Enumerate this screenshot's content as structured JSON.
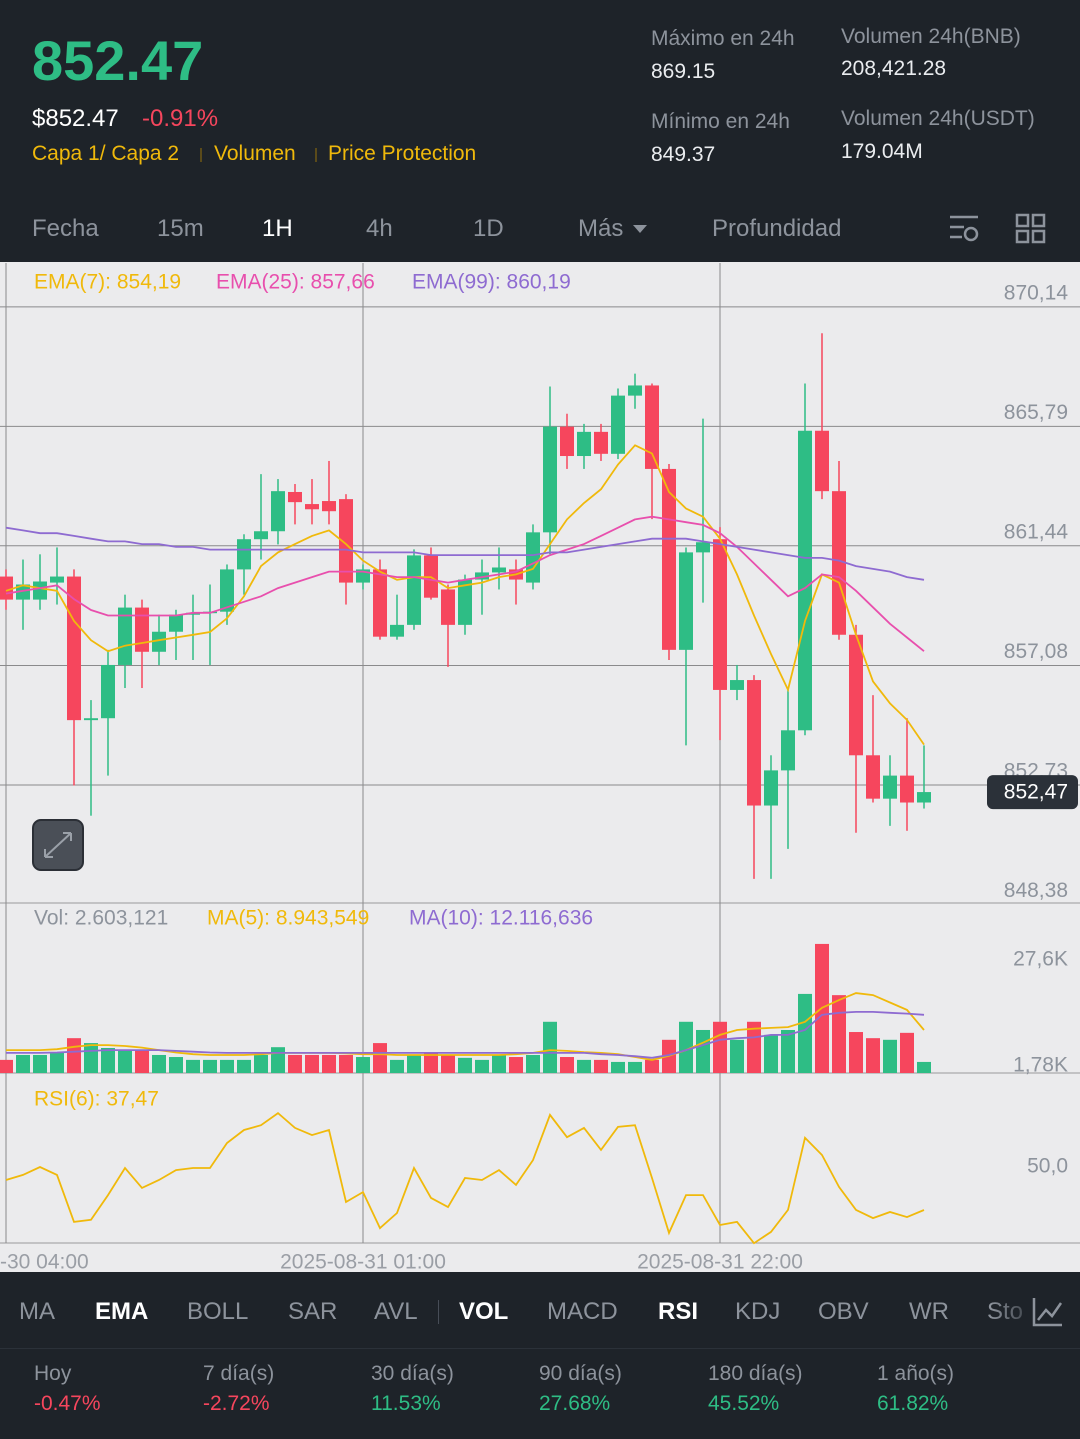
{
  "header": {
    "price": "852.47",
    "usd_price": "$852.47",
    "change": "-0.91%",
    "tags": [
      "Capa 1/ Capa 2",
      "Volumen",
      "Price Protection"
    ]
  },
  "stats": [
    {
      "label": "Máximo en 24h",
      "value": "869.15"
    },
    {
      "label": "Mínimo en 24h",
      "value": "849.37"
    },
    {
      "label": "Volumen 24h(BNB)",
      "value": "208,421.28"
    },
    {
      "label": "Volumen 24h(USDT)",
      "value": "179.04M"
    }
  ],
  "timeframes": [
    "Fecha",
    "15m",
    "1H",
    "4h",
    "1D",
    "Más",
    "Profundidad"
  ],
  "chart": {
    "type": "candlestick",
    "up_color": "#2ebd85",
    "down_color": "#f6465d",
    "ylim": [
      848.43,
      871.74
    ],
    "yticks": [
      {
        "value": 870.14,
        "label": "870,14"
      },
      {
        "value": 865.79,
        "label": "865,79"
      },
      {
        "value": 861.44,
        "label": "861,44"
      },
      {
        "value": 857.08,
        "label": "857,08"
      },
      {
        "value": 852.73,
        "label": "852,73"
      },
      {
        "value": 848.38,
        "label": "848,38"
      }
    ],
    "last_price": {
      "value": 852.47,
      "label": "852,47"
    },
    "categories": [
      "-30 04:00",
      null,
      null,
      null,
      null,
      null,
      null,
      null,
      null,
      null,
      null,
      null,
      null,
      null,
      null,
      null,
      null,
      null,
      null,
      null,
      null,
      "2025-08-31 01:00",
      null,
      null,
      null,
      null,
      null,
      null,
      null,
      null,
      null,
      null,
      null,
      null,
      null,
      null,
      null,
      null,
      null,
      null,
      null,
      null,
      "2025-08-31 22:00",
      null,
      null,
      null,
      null,
      null,
      null,
      null,
      null,
      null,
      null,
      null,
      null
    ],
    "candles": [
      {
        "open": 860.32,
        "high": 860.58,
        "low": 859.11,
        "close": 859.48
      },
      {
        "open": 859.48,
        "high": 860.94,
        "low": 858.38,
        "close": 860.03
      },
      {
        "open": 859.48,
        "high": 861.13,
        "low": 859.11,
        "close": 860.14
      },
      {
        "open": 860.1,
        "high": 861.38,
        "low": 859.3,
        "close": 860.32
      },
      {
        "open": 860.32,
        "high": 860.58,
        "low": 852.71,
        "close": 855.09
      },
      {
        "open": 855.09,
        "high": 855.82,
        "low": 851.61,
        "close": 855.16
      },
      {
        "open": 855.16,
        "high": 857.65,
        "low": 853.07,
        "close": 857.1
      },
      {
        "open": 857.1,
        "high": 859.66,
        "low": 856.26,
        "close": 859.19
      },
      {
        "open": 859.19,
        "high": 859.48,
        "low": 856.26,
        "close": 857.58
      },
      {
        "open": 857.58,
        "high": 858.93,
        "low": 857.1,
        "close": 858.31
      },
      {
        "open": 858.31,
        "high": 859.11,
        "low": 857.28,
        "close": 858.93
      },
      {
        "open": 858.93,
        "high": 859.66,
        "low": 857.28,
        "close": 859.0
      },
      {
        "open": 859.0,
        "high": 860.03,
        "low": 857.1,
        "close": 859.04
      },
      {
        "open": 859.04,
        "high": 860.76,
        "low": 858.56,
        "close": 860.58
      },
      {
        "open": 860.58,
        "high": 861.86,
        "low": 859.66,
        "close": 861.68
      },
      {
        "open": 861.68,
        "high": 864.05,
        "low": 860.94,
        "close": 861.97
      },
      {
        "open": 861.97,
        "high": 863.87,
        "low": 861.49,
        "close": 863.43
      },
      {
        "open": 863.4,
        "high": 863.69,
        "low": 862.22,
        "close": 863.03
      },
      {
        "open": 862.96,
        "high": 863.87,
        "low": 862.22,
        "close": 862.77
      },
      {
        "open": 863.07,
        "high": 864.53,
        "low": 862.22,
        "close": 862.7
      },
      {
        "open": 863.14,
        "high": 863.32,
        "low": 859.3,
        "close": 860.1
      },
      {
        "open": 860.1,
        "high": 860.76,
        "low": 859.85,
        "close": 860.58
      },
      {
        "open": 860.58,
        "high": 860.94,
        "low": 858.02,
        "close": 858.13
      },
      {
        "open": 858.13,
        "high": 859.66,
        "low": 858.02,
        "close": 858.56
      },
      {
        "open": 858.56,
        "high": 861.31,
        "low": 858.38,
        "close": 861.09
      },
      {
        "open": 861.09,
        "high": 861.38,
        "low": 859.48,
        "close": 859.55
      },
      {
        "open": 859.85,
        "high": 860.03,
        "low": 857.03,
        "close": 858.56
      },
      {
        "open": 858.56,
        "high": 860.39,
        "low": 858.2,
        "close": 860.21
      },
      {
        "open": 860.21,
        "high": 860.94,
        "low": 858.93,
        "close": 860.47
      },
      {
        "open": 860.47,
        "high": 861.38,
        "low": 859.85,
        "close": 860.65
      },
      {
        "open": 860.58,
        "high": 860.94,
        "low": 859.3,
        "close": 860.21
      },
      {
        "open": 860.1,
        "high": 862.22,
        "low": 859.85,
        "close": 861.93
      },
      {
        "open": 861.93,
        "high": 867.24,
        "low": 861.13,
        "close": 865.78
      },
      {
        "open": 865.78,
        "high": 866.25,
        "low": 864.24,
        "close": 864.71
      },
      {
        "open": 864.71,
        "high": 865.88,
        "low": 864.24,
        "close": 865.59
      },
      {
        "open": 865.59,
        "high": 865.88,
        "low": 864.53,
        "close": 864.79
      },
      {
        "open": 864.79,
        "high": 867.17,
        "low": 864.6,
        "close": 866.91
      },
      {
        "open": 866.91,
        "high": 867.71,
        "low": 866.43,
        "close": 867.28
      },
      {
        "open": 867.28,
        "high": 867.35,
        "low": 862.41,
        "close": 864.24
      },
      {
        "open": 864.24,
        "high": 864.42,
        "low": 857.28,
        "close": 857.65
      },
      {
        "open": 857.65,
        "high": 861.38,
        "low": 854.17,
        "close": 861.2
      },
      {
        "open": 861.2,
        "high": 866.07,
        "low": 859.37,
        "close": 861.57
      },
      {
        "open": 861.68,
        "high": 862.12,
        "low": 854.36,
        "close": 856.19
      },
      {
        "open": 856.19,
        "high": 857.1,
        "low": 855.82,
        "close": 856.55
      },
      {
        "open": 856.55,
        "high": 856.73,
        "low": 849.31,
        "close": 851.98
      },
      {
        "open": 851.98,
        "high": 853.81,
        "low": 849.31,
        "close": 853.26
      },
      {
        "open": 853.26,
        "high": 856.19,
        "low": 850.4,
        "close": 854.72
      },
      {
        "open": 854.72,
        "high": 867.35,
        "low": 854.54,
        "close": 865.63
      },
      {
        "open": 865.63,
        "high": 869.18,
        "low": 863.14,
        "close": 863.43
      },
      {
        "open": 863.43,
        "high": 864.53,
        "low": 858.02,
        "close": 858.2
      },
      {
        "open": 858.2,
        "high": 858.56,
        "low": 850.99,
        "close": 853.81
      },
      {
        "open": 853.81,
        "high": 856.0,
        "low": 852.09,
        "close": 852.23
      },
      {
        "open": 852.23,
        "high": 853.81,
        "low": 851.24,
        "close": 853.07
      },
      {
        "open": 853.07,
        "high": 855.16,
        "low": 851.06,
        "close": 852.09
      },
      {
        "open": 852.09,
        "high": 854.17,
        "low": 851.87,
        "close": 852.47
      }
    ],
    "series": [
      {
        "name": "EMA(7): 854,19",
        "color": "#f0b90b",
        "values": [
          859.8,
          860.0,
          859.9,
          859.8,
          858.7,
          858.0,
          857.6,
          857.8,
          857.9,
          858.0,
          858.1,
          858.2,
          858.3,
          858.8,
          859.6,
          860.7,
          861.2,
          861.5,
          861.8,
          862.0,
          861.5,
          860.9,
          860.5,
          860.2,
          860.3,
          860.3,
          859.9,
          860.0,
          860.1,
          860.3,
          860.4,
          860.6,
          861.5,
          862.4,
          863.0,
          863.5,
          864.4,
          865.1,
          864.8,
          863.4,
          862.8,
          862.5,
          861.7,
          860.4,
          858.9,
          857.5,
          856.2,
          858.7,
          860.4,
          860.1,
          858.2,
          856.5,
          855.7,
          855.1,
          854.2
        ]
      },
      {
        "name": "EMA(25): 857,66",
        "color": "#e84fad",
        "values": [
          859.7,
          859.8,
          859.9,
          860.0,
          859.5,
          859.1,
          858.9,
          858.9,
          858.9,
          858.9,
          858.9,
          859.0,
          859.0,
          859.2,
          859.4,
          859.6,
          859.9,
          860.1,
          860.3,
          860.5,
          860.5,
          860.5,
          860.4,
          860.3,
          860.3,
          860.2,
          860.1,
          860.2,
          860.3,
          860.4,
          860.5,
          860.8,
          861.1,
          861.3,
          861.5,
          861.8,
          862.1,
          862.4,
          862.5,
          862.4,
          862.3,
          862.2,
          861.9,
          861.4,
          860.8,
          860.2,
          859.6,
          859.9,
          860.4,
          860.3,
          859.8,
          859.2,
          858.6,
          858.1,
          857.6
        ]
      },
      {
        "name": "EMA(99): 860,19",
        "color": "#8e6bd1",
        "values": [
          862.1,
          862.0,
          861.9,
          861.9,
          861.8,
          861.7,
          861.6,
          861.6,
          861.5,
          861.5,
          861.4,
          861.4,
          861.3,
          861.3,
          861.3,
          861.3,
          861.3,
          861.3,
          861.3,
          861.3,
          861.3,
          861.2,
          861.2,
          861.2,
          861.2,
          861.1,
          861.1,
          861.1,
          861.1,
          861.1,
          861.1,
          861.1,
          861.2,
          861.2,
          861.3,
          861.4,
          861.5,
          861.6,
          861.7,
          861.7,
          861.7,
          861.6,
          861.5,
          861.4,
          861.3,
          861.2,
          861.1,
          861.0,
          861.0,
          860.9,
          860.7,
          860.6,
          860.5,
          860.3,
          860.2
        ]
      }
    ],
    "volume": {
      "title": "Vol: 2.603,121",
      "ylim": [
        0,
        41
      ],
      "yticks": [
        {
          "value": 27.6,
          "label": "27,6K"
        },
        {
          "value": 1.78,
          "label": "1,78K"
        }
      ],
      "values": [
        3.2,
        4.4,
        4.4,
        4.9,
        8.5,
        7.3,
        6.1,
        5.6,
        5.6,
        4.4,
        3.9,
        3.2,
        3.2,
        3.2,
        3.2,
        4.4,
        6.3,
        4.4,
        4.4,
        4.4,
        4.4,
        3.9,
        7.3,
        3.2,
        4.4,
        4.9,
        4.4,
        3.7,
        3.2,
        4.4,
        3.9,
        4.4,
        12.5,
        3.9,
        3.2,
        3.2,
        2.7,
        2.7,
        3.2,
        8.1,
        12.5,
        10.5,
        12.5,
        8.1,
        12.5,
        9.3,
        10.5,
        19.3,
        31.5,
        19.0,
        10.0,
        8.5,
        8.1,
        9.8,
        2.7
      ],
      "series": [
        {
          "name": "MA(5): 8.943,549",
          "color": "#f0b90b",
          "values": [
            5.6,
            5.6,
            5.6,
            5.8,
            6.4,
            6.8,
            6.8,
            6.6,
            6.2,
            5.6,
            5.0,
            4.6,
            4.4,
            4.4,
            4.4,
            4.6,
            4.9,
            4.9,
            4.9,
            4.9,
            4.8,
            4.6,
            4.6,
            4.4,
            4.4,
            4.4,
            4.4,
            4.4,
            4.4,
            4.4,
            4.6,
            4.9,
            5.6,
            5.4,
            5.1,
            4.9,
            4.6,
            3.9,
            3.2,
            4.2,
            5.6,
            7.4,
            9.3,
            10.5,
            10.8,
            11.0,
            11.2,
            12.5,
            15.9,
            17.8,
            19.5,
            19.0,
            17.2,
            15.4,
            10.5
          ]
        },
        {
          "name": "MA(10): 12.116,636",
          "color": "#8e6bd1",
          "values": [
            4.9,
            4.9,
            4.9,
            5.0,
            5.2,
            5.4,
            5.6,
            5.6,
            5.6,
            5.6,
            5.4,
            5.2,
            5.0,
            4.9,
            4.9,
            4.9,
            4.9,
            4.9,
            4.9,
            4.9,
            4.9,
            4.9,
            4.9,
            4.9,
            4.9,
            4.9,
            4.9,
            4.9,
            4.9,
            4.9,
            4.9,
            4.9,
            4.9,
            4.9,
            4.9,
            4.6,
            4.4,
            4.1,
            3.7,
            4.4,
            5.6,
            6.8,
            8.1,
            8.5,
            8.7,
            9.3,
            9.3,
            10.5,
            14.2,
            14.7,
            14.9,
            14.9,
            14.7,
            14.5,
            14.2
          ]
        }
      ]
    },
    "rsi": {
      "name": "RSI(6): 37,47",
      "color": "#f0b90b",
      "ylim": [
        27.85,
        76.82
      ],
      "yticks": [
        {
          "value": 50,
          "label": "50,0"
        }
      ],
      "values": [
        46.2,
        47.7,
        50.0,
        47.7,
        34.0,
        34.6,
        41.8,
        49.7,
        43.9,
        46.2,
        49.1,
        49.7,
        49.7,
        57.0,
        60.8,
        62.2,
        65.7,
        61.4,
        59.3,
        60.8,
        39.8,
        42.7,
        32.2,
        36.6,
        49.7,
        41.0,
        38.3,
        46.8,
        46.2,
        49.1,
        44.8,
        52.0,
        65.2,
        58.7,
        61.4,
        55.0,
        61.7,
        62.2,
        46.8,
        30.8,
        41.8,
        41.8,
        33.1,
        34.0,
        27.8,
        31.1,
        37.5,
        58.5,
        53.5,
        44.2,
        37.5,
        35.1,
        36.9,
        35.4,
        37.47
      ]
    }
  },
  "indicator_tabs": [
    "MA",
    "EMA",
    "BOLL",
    "SAR",
    "AVL",
    "VOL",
    "MACD",
    "RSI",
    "KDJ",
    "OBV",
    "WR",
    "Sto"
  ],
  "performance": [
    {
      "period": "Hoy",
      "change": "-0.47%"
    },
    {
      "period": "7 día(s)",
      "change": "-2.72%"
    },
    {
      "period": "30 día(s)",
      "change": "11.53%"
    },
    {
      "period": "90 día(s)",
      "change": "27.68%"
    },
    {
      "period": "180 día(s)",
      "change": "45.52%"
    },
    {
      "period": "1 año(s)",
      "change": "61.82%"
    }
  ]
}
